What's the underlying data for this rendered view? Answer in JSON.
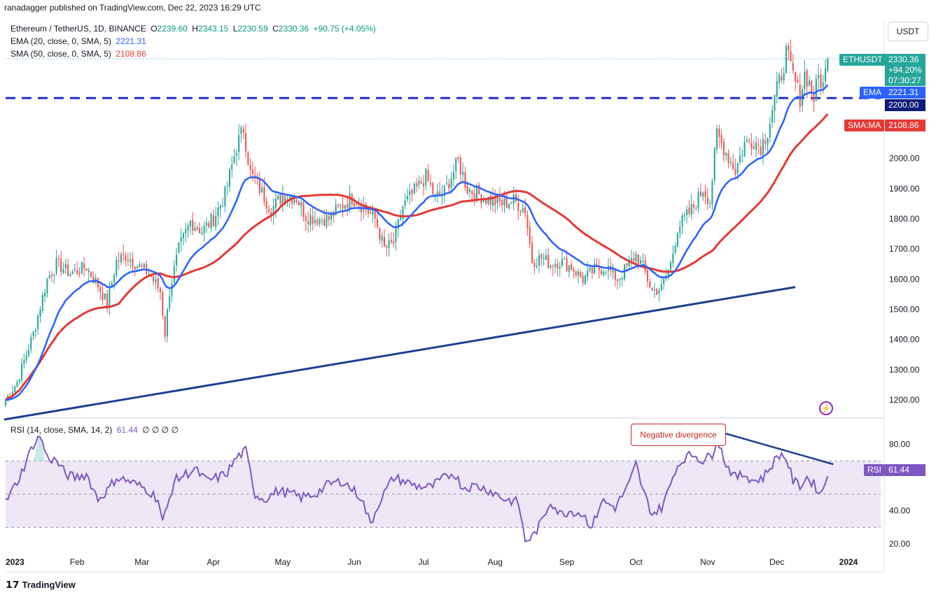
{
  "header": {
    "published": "ranadagger published on TradingView.com, Dec 22, 2023 16:29 UTC"
  },
  "legend": {
    "symbol": "Ethereum / TetherUS, 1D, BINANCE",
    "open_label": "O",
    "open": "2239.60",
    "high_label": "H",
    "high": "2343.15",
    "low_label": "L",
    "low": "2230.59",
    "close_label": "C",
    "close": "2330.36",
    "change": "+90.75 (+4.05%)",
    "ema_label": "EMA (20, close, 0, SMA, 5)",
    "ema_value": "2221.31",
    "sma_label": "SMA (50, close, 0, SMA, 5)",
    "sma_value": "2108.86",
    "rsi_label": "RSI (14, close, SMA, 14, 2)",
    "rsi_value": "61.44",
    "rsi_extra": "∅ ∅ ∅ ∅"
  },
  "currency_button": "USDT",
  "price_tags": {
    "symbol_tag": "ETHUSDT",
    "last_price": "2330.36",
    "pct": "+94.20%",
    "countdown": "07:30:27",
    "ema_tag": "EMA",
    "ema_price": "2221.31",
    "level_price": "2200.00",
    "sma_tag": "SMA:MA",
    "sma_price": "2108.86",
    "rsi_tag": "RSI",
    "rsi_price": "61.44"
  },
  "annotation": "Negative divergence",
  "footer": {
    "brand": "TradingView"
  },
  "colors": {
    "up": "#26a69a",
    "down": "#ef5350",
    "ema": "#2962ff",
    "sma": "#e53935",
    "trendline": "#1f3f8f",
    "level": "#1f2fcc",
    "rsi": "#7e57c2",
    "rsi_band": "#ede7f6"
  },
  "chart_data": {
    "type": "candlestick",
    "price_axis": {
      "ticks": [
        1200,
        1300,
        1400,
        1500,
        1600,
        1700,
        1800,
        1900,
        2000
      ],
      "tick_labels": [
        "1200.00",
        "1300.00",
        "1400.00",
        "1500.00",
        "1600.00",
        "1700.00",
        "1800.00",
        "1900.00",
        "2000.00"
      ],
      "range": [
        1140,
        2460
      ]
    },
    "rsi_axis": {
      "ticks": [
        20,
        40,
        80
      ],
      "tick_labels": [
        "20.00",
        "40.00",
        "80.00"
      ],
      "range": [
        15,
        95
      ],
      "band": [
        30,
        70
      ],
      "midline": 50
    },
    "x_axis": {
      "labels": [
        "2023",
        "Feb",
        "Mar",
        "Apr",
        "May",
        "Jun",
        "Jul",
        "Aug",
        "Sep",
        "Oct",
        "Nov",
        "Dec",
        "2024"
      ],
      "label_days": [
        0,
        31,
        59,
        90,
        120,
        151,
        181,
        212,
        243,
        273,
        304,
        334,
        365
      ],
      "bold_labels": [
        "2023",
        "2024"
      ]
    },
    "horizontal_level": 2200,
    "trendline": {
      "from": {
        "day": 0,
        "price": 1135
      },
      "to": {
        "day": 342,
        "price": 1574
      }
    },
    "rsi_divergence_line": {
      "from": {
        "day": 308,
        "rsi": 88
      },
      "to": {
        "day": 356,
        "rsi": 68
      }
    },
    "close_key_points": [
      [
        0,
        1200
      ],
      [
        5,
        1260
      ],
      [
        12,
        1420
      ],
      [
        18,
        1600
      ],
      [
        22,
        1650
      ],
      [
        28,
        1620
      ],
      [
        35,
        1640
      ],
      [
        40,
        1580
      ],
      [
        44,
        1520
      ],
      [
        48,
        1660
      ],
      [
        52,
        1680
      ],
      [
        58,
        1640
      ],
      [
        62,
        1620
      ],
      [
        67,
        1560
      ],
      [
        69,
        1420
      ],
      [
        71,
        1560
      ],
      [
        75,
        1700
      ],
      [
        80,
        1790
      ],
      [
        85,
        1760
      ],
      [
        90,
        1800
      ],
      [
        95,
        1880
      ],
      [
        100,
        2040
      ],
      [
        103,
        2100
      ],
      [
        106,
        1950
      ],
      [
        110,
        1900
      ],
      [
        115,
        1830
      ],
      [
        120,
        1880
      ],
      [
        126,
        1870
      ],
      [
        130,
        1810
      ],
      [
        135,
        1800
      ],
      [
        140,
        1800
      ],
      [
        145,
        1840
      ],
      [
        150,
        1870
      ],
      [
        155,
        1840
      ],
      [
        160,
        1800
      ],
      [
        164,
        1700
      ],
      [
        168,
        1720
      ],
      [
        172,
        1840
      ],
      [
        178,
        1900
      ],
      [
        182,
        1940
      ],
      [
        186,
        1870
      ],
      [
        190,
        1890
      ],
      [
        196,
        1990
      ],
      [
        200,
        1900
      ],
      [
        205,
        1880
      ],
      [
        210,
        1860
      ],
      [
        215,
        1850
      ],
      [
        220,
        1860
      ],
      [
        225,
        1830
      ],
      [
        228,
        1660
      ],
      [
        232,
        1670
      ],
      [
        236,
        1650
      ],
      [
        240,
        1660
      ],
      [
        245,
        1640
      ],
      [
        250,
        1600
      ],
      [
        255,
        1630
      ],
      [
        260,
        1640
      ],
      [
        265,
        1600
      ],
      [
        270,
        1650
      ],
      [
        273,
        1680
      ],
      [
        276,
        1640
      ],
      [
        280,
        1560
      ],
      [
        284,
        1570
      ],
      [
        288,
        1650
      ],
      [
        291,
        1770
      ],
      [
        294,
        1800
      ],
      [
        298,
        1840
      ],
      [
        302,
        1900
      ],
      [
        305,
        1860
      ],
      [
        308,
        2080
      ],
      [
        312,
        2020
      ],
      [
        316,
        1960
      ],
      [
        320,
        2050
      ],
      [
        324,
        2060
      ],
      [
        327,
        2040
      ],
      [
        330,
        2090
      ],
      [
        333,
        2200
      ],
      [
        336,
        2280
      ],
      [
        338,
        2350
      ],
      [
        340,
        2300
      ],
      [
        342,
        2250
      ],
      [
        344,
        2200
      ],
      [
        346,
        2280
      ],
      [
        348,
        2250
      ],
      [
        350,
        2200
      ],
      [
        352,
        2270
      ],
      [
        354,
        2240
      ],
      [
        356,
        2330
      ]
    ],
    "rsi_key_points": [
      [
        0,
        45
      ],
      [
        6,
        60
      ],
      [
        12,
        80
      ],
      [
        15,
        85
      ],
      [
        18,
        72
      ],
      [
        22,
        70
      ],
      [
        26,
        62
      ],
      [
        30,
        60
      ],
      [
        35,
        62
      ],
      [
        40,
        47
      ],
      [
        44,
        52
      ],
      [
        48,
        60
      ],
      [
        53,
        58
      ],
      [
        58,
        55
      ],
      [
        62,
        52
      ],
      [
        66,
        47
      ],
      [
        68,
        33
      ],
      [
        70,
        42
      ],
      [
        73,
        58
      ],
      [
        78,
        62
      ],
      [
        82,
        65
      ],
      [
        87,
        58
      ],
      [
        92,
        60
      ],
      [
        96,
        63
      ],
      [
        100,
        72
      ],
      [
        104,
        76
      ],
      [
        108,
        50
      ],
      [
        112,
        47
      ],
      [
        118,
        52
      ],
      [
        124,
        50
      ],
      [
        128,
        48
      ],
      [
        134,
        50
      ],
      [
        140,
        56
      ],
      [
        146,
        58
      ],
      [
        150,
        53
      ],
      [
        154,
        48
      ],
      [
        158,
        32
      ],
      [
        162,
        46
      ],
      [
        168,
        60
      ],
      [
        172,
        58
      ],
      [
        178,
        55
      ],
      [
        184,
        54
      ],
      [
        188,
        58
      ],
      [
        194,
        63
      ],
      [
        198,
        54
      ],
      [
        204,
        55
      ],
      [
        210,
        52
      ],
      [
        216,
        47
      ],
      [
        222,
        45
      ],
      [
        225,
        22
      ],
      [
        228,
        24
      ],
      [
        232,
        33
      ],
      [
        236,
        46
      ],
      [
        240,
        38
      ],
      [
        245,
        40
      ],
      [
        250,
        38
      ],
      [
        254,
        30
      ],
      [
        258,
        46
      ],
      [
        264,
        42
      ],
      [
        270,
        56
      ],
      [
        273,
        68
      ],
      [
        276,
        52
      ],
      [
        280,
        38
      ],
      [
        284,
        42
      ],
      [
        287,
        52
      ],
      [
        290,
        65
      ],
      [
        294,
        72
      ],
      [
        298,
        74
      ],
      [
        302,
        70
      ],
      [
        306,
        74
      ],
      [
        308,
        84
      ],
      [
        312,
        68
      ],
      [
        316,
        60
      ],
      [
        320,
        62
      ],
      [
        324,
        58
      ],
      [
        328,
        60
      ],
      [
        332,
        68
      ],
      [
        335,
        74
      ],
      [
        338,
        72
      ],
      [
        341,
        58
      ],
      [
        344,
        55
      ],
      [
        347,
        60
      ],
      [
        350,
        56
      ],
      [
        353,
        50
      ],
      [
        356,
        61
      ]
    ]
  }
}
